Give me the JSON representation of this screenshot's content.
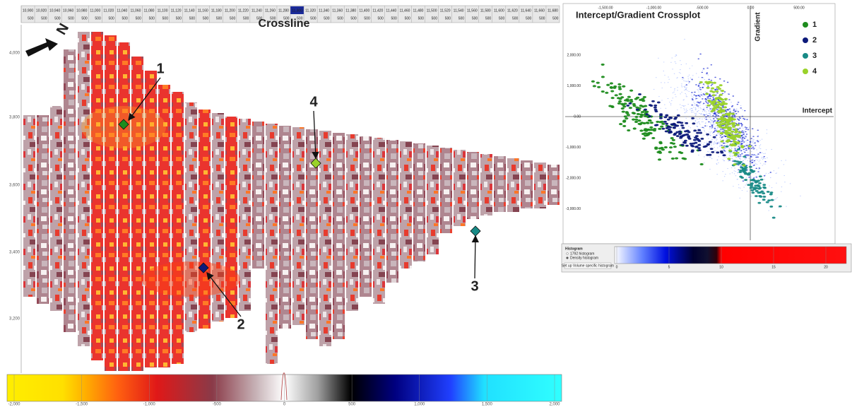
{
  "crossline_ruler": {
    "title": "Crossline",
    "labels": [
      "10,900",
      "10,920",
      "10,940",
      "10,960",
      "10,980",
      "11,000",
      "11,020",
      "11,040",
      "11,060",
      "11,080",
      "11,100",
      "11,120",
      "11,140",
      "11,160",
      "11,180",
      "11,200",
      "11,220",
      "11,240",
      "11,260",
      "11,280",
      "11,300",
      "11,320",
      "11,340",
      "11,360",
      "11,380",
      "11,400",
      "11,420",
      "11,440",
      "11,460",
      "11,480",
      "11,500",
      "11,520",
      "11,540",
      "11,560",
      "11,580",
      "11,600",
      "11,620",
      "11,640",
      "11,660",
      "11,680"
    ],
    "sublabel": "500",
    "selected": 20
  },
  "map": {
    "y_labels": [
      "4,000",
      "3,800",
      "3,600",
      "3,400",
      "3,200"
    ],
    "markers": [
      {
        "label": "1",
        "color": "#1e8c1e"
      },
      {
        "label": "2",
        "color": "#0d1a7a"
      },
      {
        "label": "3",
        "color": "#188a86"
      },
      {
        "label": "4",
        "color": "#9ad22a"
      }
    ],
    "colorbar_labels": [
      "-2,000",
      "-1,500",
      "-1,000",
      "-500",
      "0",
      "500",
      "1,000",
      "1,500",
      "2,000"
    ]
  },
  "crossplot": {
    "title": "Intercept/Gradient Crossplot",
    "x_axis_label": "Intercept",
    "y_axis_label": "Gradient",
    "legend": [
      {
        "label": "1",
        "color": "#1e8c1e"
      },
      {
        "label": "2",
        "color": "#0d1a7a"
      },
      {
        "label": "3",
        "color": "#188a86"
      },
      {
        "label": "4",
        "color": "#9ad22a"
      }
    ],
    "x_tick_labels": [
      "-1,500.00",
      "-1,000.00",
      "-500.00",
      "0.00",
      "500.00"
    ],
    "y_tick_labels": [
      "2,000.00",
      "1,000.00",
      "0.00",
      "-1,000.00",
      "-2,000.00",
      "-3,000.00"
    ]
  },
  "histogram_panel": {
    "title": "Histogram",
    "options": [
      "1792 histogram",
      "Density histogram"
    ],
    "button": "Set up Volume specific histogram",
    "scale_labels": [
      "0",
      "5",
      "10",
      "15",
      "20"
    ]
  }
}
